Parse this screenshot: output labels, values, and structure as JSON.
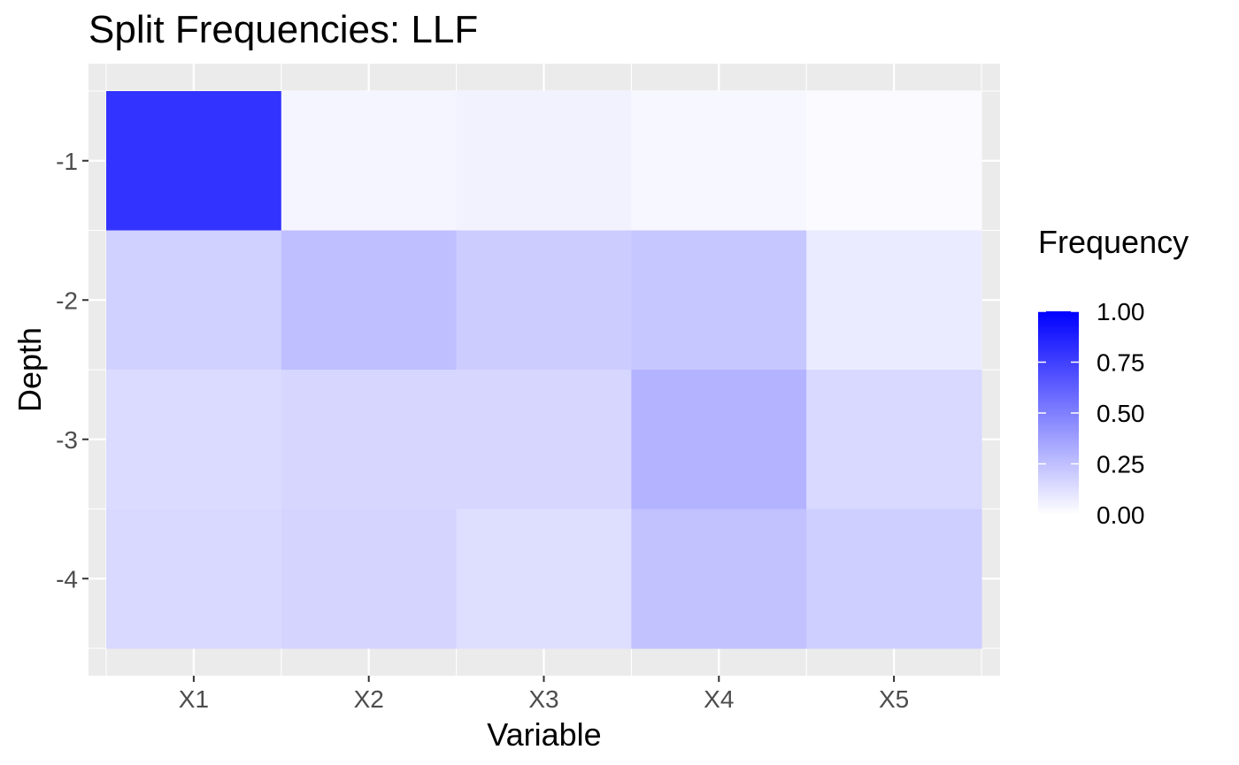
{
  "chart_data": {
    "type": "heatmap",
    "title": "Split Frequencies: LLF",
    "xlabel": "Variable",
    "ylabel": "Depth",
    "x_categories": [
      "X1",
      "X2",
      "X3",
      "X4",
      "X5"
    ],
    "y_categories": [
      "-1",
      "-2",
      "-3",
      "-4"
    ],
    "values": [
      [
        0.8,
        0.04,
        0.05,
        0.03,
        0.02
      ],
      [
        0.18,
        0.25,
        0.2,
        0.22,
        0.08
      ],
      [
        0.14,
        0.16,
        0.16,
        0.3,
        0.15
      ],
      [
        0.15,
        0.17,
        0.13,
        0.24,
        0.19
      ]
    ],
    "legend": {
      "title": "Frequency",
      "ticks": [
        1.0,
        0.75,
        0.5,
        0.25,
        0.0
      ],
      "tick_labels": [
        "1.00",
        "0.75",
        "0.50",
        "0.25",
        "0.00"
      ],
      "low_color": "#ffffff",
      "high_color": "#0000ff"
    },
    "panel_background": "#ebebeb",
    "grid": true,
    "legend_position": "right"
  }
}
